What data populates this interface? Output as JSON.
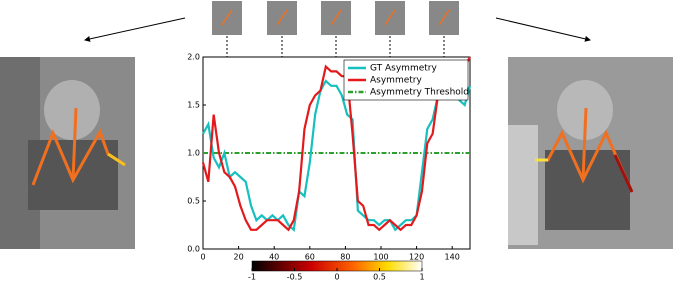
{
  "chart_data": {
    "type": "line",
    "x": [
      0,
      3,
      6,
      9,
      12,
      15,
      18,
      21,
      24,
      27,
      30,
      33,
      36,
      39,
      42,
      45,
      48,
      51,
      54,
      57,
      60,
      63,
      66,
      69,
      72,
      75,
      78,
      81,
      84,
      87,
      90,
      93,
      96,
      99,
      102,
      105,
      108,
      111,
      114,
      117,
      120,
      123,
      126,
      129,
      132,
      135,
      138,
      141,
      144,
      147,
      150
    ],
    "series": [
      {
        "name": "GT Asymmetry",
        "color": "#17bfbf",
        "values": [
          1.2,
          1.3,
          0.95,
          0.85,
          1.0,
          0.75,
          0.8,
          0.75,
          0.7,
          0.45,
          0.3,
          0.35,
          0.3,
          0.35,
          0.3,
          0.35,
          0.25,
          0.2,
          0.6,
          0.55,
          0.9,
          1.4,
          1.65,
          1.75,
          1.7,
          1.7,
          1.6,
          1.4,
          1.35,
          0.4,
          0.35,
          0.3,
          0.3,
          0.25,
          0.3,
          0.3,
          0.2,
          0.25,
          0.3,
          0.3,
          0.35,
          0.8,
          1.25,
          1.35,
          1.6,
          1.75,
          1.7,
          1.65,
          1.55,
          1.5,
          1.7
        ]
      },
      {
        "name": "Asymmetry",
        "color": "#e31a1c",
        "values": [
          0.9,
          0.7,
          1.4,
          1.0,
          0.8,
          0.75,
          0.65,
          0.45,
          0.3,
          0.2,
          0.2,
          0.25,
          0.3,
          0.3,
          0.3,
          0.25,
          0.2,
          0.3,
          0.6,
          1.25,
          1.5,
          1.6,
          1.65,
          1.9,
          1.85,
          1.85,
          1.8,
          1.8,
          1.2,
          0.5,
          0.45,
          0.25,
          0.25,
          0.2,
          0.25,
          0.3,
          0.25,
          0.2,
          0.25,
          0.25,
          0.35,
          0.6,
          1.1,
          1.2,
          1.6,
          1.9,
          1.9,
          1.85,
          1.8,
          1.9,
          2.0
        ]
      }
    ],
    "threshold": {
      "name": "Asymmetry Threshold",
      "value": 1.0,
      "color": "#2ca02c"
    },
    "xlim": [
      0,
      150
    ],
    "xticks": [
      0,
      20,
      40,
      60,
      80,
      100,
      120,
      140
    ],
    "ylim": [
      0,
      2
    ],
    "yticks": [
      {
        "value": 0,
        "label": "0.0"
      },
      {
        "value": 0.5,
        "label": "0.5"
      },
      {
        "value": 1,
        "label": "1.0"
      },
      {
        "value": 1.5,
        "label": "1.5"
      },
      {
        "value": 2,
        "label": "2.0"
      }
    ],
    "legend": "upper right",
    "colorbar": {
      "lim": [
        -1,
        1
      ],
      "ticks": [
        -1,
        -0.5,
        0,
        0.5,
        1
      ]
    }
  }
}
